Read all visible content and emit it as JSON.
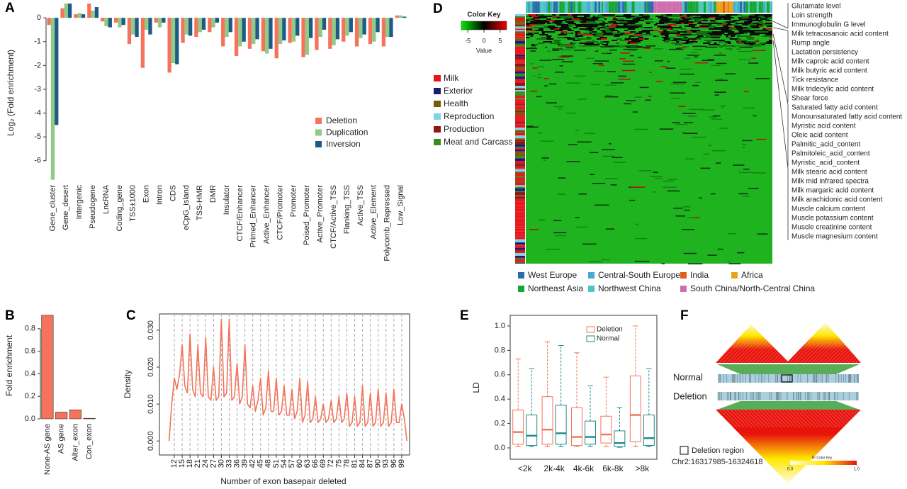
{
  "chart_data": [
    {
      "label": "A",
      "type": "bar",
      "ylabel": "Log₂ (Fold enrichment)",
      "categories": [
        "Gene_cluster",
        "Gene_desert",
        "Intergenic",
        "Pseudogene",
        "LncRNA",
        "Coding_gene",
        "TSS±1000",
        "Exon",
        "Intron",
        "CDS",
        "eCpG_island",
        "TSS-HMR",
        "DMR",
        "Insulator",
        "CTCF/Enhancer",
        "Primed_Enhancer",
        "Active_Enhancer",
        "CTCF/Promoter",
        "Promoter",
        "Poised_Promoter",
        "Active_Promoter",
        "CTCF/Active_TSS",
        "Flanking_TSS",
        "Active_TSS",
        "Active_Element",
        "Polycomb_Repressed",
        "Low_Signal"
      ],
      "series": [
        {
          "name": "Deletion",
          "color": "#f4735a",
          "values": [
            -0.3,
            0.4,
            0.15,
            0.6,
            -0.15,
            -0.2,
            -1.1,
            -2.1,
            -0.2,
            -2.3,
            -1.05,
            -0.8,
            -0.6,
            -1.2,
            -1.6,
            -1.3,
            -1.4,
            -1.7,
            -1.05,
            -1.65,
            -1.35,
            -1.3,
            -1.0,
            -1.2,
            -1.1,
            -1.2,
            0.1
          ]
        },
        {
          "name": "Duplication",
          "color": "#8fca86",
          "values": [
            -6.8,
            0.6,
            0.2,
            0.3,
            -0.35,
            -0.4,
            -0.7,
            -0.5,
            -0.4,
            -1.9,
            -0.7,
            -0.6,
            -0.4,
            -0.8,
            -1.2,
            -1.1,
            -1.5,
            -1.1,
            -1.0,
            -1.55,
            -0.8,
            -1.15,
            -0.75,
            -0.85,
            -1.0,
            -0.8,
            0.1
          ]
        },
        {
          "name": "Inversion",
          "color": "#1d5b86",
          "values": [
            -4.5,
            0.6,
            0.15,
            0.45,
            -0.4,
            -0.3,
            -0.8,
            -0.7,
            -0.2,
            -1.95,
            -0.75,
            -0.5,
            -0.2,
            -0.6,
            -1.0,
            -0.9,
            -1.3,
            -0.95,
            -0.75,
            -0.85,
            -0.5,
            -0.9,
            -0.6,
            -0.7,
            -0.6,
            -0.8,
            0.05
          ]
        }
      ],
      "ylim": [
        -6.9,
        0.6
      ],
      "yticks": [
        0,
        -1,
        -2,
        -3,
        -4,
        -5,
        -6
      ],
      "legend": "right"
    },
    {
      "label": "B",
      "type": "bar",
      "ylabel": "Fold enrichment",
      "categories": [
        "None-AS gene",
        "AS gene",
        "Alter_exon",
        "Con_exon"
      ],
      "values": [
        0.92,
        0.06,
        0.08,
        0.005
      ],
      "color": "#f4735a",
      "ylim": [
        0,
        0.95
      ],
      "yticks": [
        {
          "value": 0,
          "label": "0.0"
        },
        0.2,
        0.4,
        0.6,
        0.8
      ]
    },
    {
      "label": "C",
      "type": "line",
      "xlabel": "Number of exon basepair deleted",
      "ylabel": "Density",
      "color": "#f4735a",
      "grid": true,
      "x": [
        10,
        11,
        12,
        13,
        14,
        15,
        16,
        17,
        18,
        19,
        20,
        21,
        22,
        23,
        24,
        25,
        26,
        27,
        28,
        29,
        30,
        31,
        32,
        33,
        34,
        35,
        36,
        37,
        38,
        39,
        40,
        41,
        42,
        43,
        44,
        45,
        46,
        47,
        48,
        49,
        50,
        51,
        52,
        53,
        54,
        55,
        56,
        57,
        58,
        59,
        60,
        61,
        62,
        63,
        64,
        65,
        66,
        67,
        68,
        69,
        70,
        71,
        72,
        73,
        74,
        75,
        76,
        77,
        78,
        79,
        80,
        81,
        82,
        83,
        84,
        85,
        86,
        87,
        88,
        89,
        90,
        91,
        92,
        93,
        94,
        95,
        96,
        97,
        98,
        99,
        100,
        101
      ],
      "values": [
        0.0,
        0.01,
        0.017,
        0.014,
        0.018,
        0.026,
        0.015,
        0.013,
        0.029,
        0.014,
        0.012,
        0.026,
        0.013,
        0.012,
        0.028,
        0.012,
        0.011,
        0.02,
        0.011,
        0.012,
        0.033,
        0.012,
        0.013,
        0.033,
        0.011,
        0.012,
        0.021,
        0.01,
        0.012,
        0.026,
        0.01,
        0.009,
        0.015,
        0.008,
        0.011,
        0.017,
        0.007,
        0.009,
        0.019,
        0.008,
        0.008,
        0.017,
        0.007,
        0.008,
        0.015,
        0.007,
        0.007,
        0.014,
        0.006,
        0.008,
        0.017,
        0.005,
        0.007,
        0.016,
        0.005,
        0.006,
        0.012,
        0.005,
        0.006,
        0.01,
        0.005,
        0.006,
        0.011,
        0.005,
        0.006,
        0.012,
        0.005,
        0.006,
        0.013,
        0.004,
        0.005,
        0.012,
        0.004,
        0.005,
        0.015,
        0.004,
        0.005,
        0.013,
        0.004,
        0.005,
        0.014,
        0.004,
        0.005,
        0.013,
        0.004,
        0.005,
        0.014,
        0.005,
        0.005,
        0.01,
        0.006,
        0.0
      ],
      "xlim": [
        6.3,
        102
      ],
      "ylim": [
        -0.0038,
        0.0344
      ],
      "xticks": [
        12,
        15,
        18,
        21,
        24,
        27,
        30,
        33,
        36,
        39,
        42,
        45,
        48,
        51,
        54,
        57,
        60,
        63,
        66,
        69,
        72,
        75,
        78,
        81,
        84,
        87,
        90,
        93,
        96,
        99
      ],
      "yticks": [
        {
          "value": 0,
          "label": "0.000"
        },
        {
          "value": 0.01,
          "label": "0.010"
        },
        {
          "value": 0.02,
          "label": "0.020"
        },
        {
          "value": 0.03,
          "label": "0.030"
        }
      ]
    },
    {
      "label": "E",
      "type": "box",
      "ylabel": "LD",
      "categories": [
        "<2k",
        "2k-4k",
        "4k-6k",
        "6k-8k",
        ">8k"
      ],
      "series": [
        {
          "name": "Deletion",
          "color": "#f4735a",
          "min": [
            0.01,
            0.01,
            0.01,
            0.01,
            0.01
          ],
          "q1": [
            0.03,
            0.03,
            0.02,
            0.04,
            0.05
          ],
          "median": [
            0.13,
            0.15,
            0.09,
            0.11,
            0.27
          ],
          "q3": [
            0.31,
            0.42,
            0.33,
            0.26,
            0.59
          ],
          "max": [
            0.73,
            0.87,
            0.78,
            0.58,
            1.0
          ]
        },
        {
          "name": "Normal",
          "color": "#1d8a8a",
          "min": [
            0.01,
            0.01,
            0.01,
            0.005,
            0.01
          ],
          "q1": [
            0.02,
            0.03,
            0.03,
            0.01,
            0.02
          ],
          "median": [
            0.1,
            0.12,
            0.09,
            0.04,
            0.08
          ],
          "q3": [
            0.27,
            0.35,
            0.22,
            0.14,
            0.27
          ],
          "max": [
            0.65,
            0.84,
            0.51,
            0.33,
            0.65
          ]
        }
      ],
      "ylim": [
        -0.093,
        1.087
      ],
      "yticks": [
        {
          "value": 0,
          "label": "0.0"
        },
        0.2,
        0.4,
        0.6,
        0.8,
        {
          "value": 1,
          "label": "1.0"
        }
      ],
      "legend": "upper right"
    },
    {
      "label": "D",
      "type": "heatmap",
      "color_key": {
        "title": "Color Key",
        "xlabel": "Value",
        "zlim": [
          -7,
          7
        ],
        "ticks": [
          -5,
          0,
          5
        ],
        "colors": [
          "#00ee00",
          "#000000",
          "#ee0000"
        ]
      },
      "row_groups": [
        {
          "name": "Milk",
          "color": "#e8161c"
        },
        {
          "name": "Exterior",
          "color": "#1c1c78"
        },
        {
          "name": "Health",
          "color": "#7a5a0c"
        },
        {
          "name": "Reproduction",
          "color": "#7cd4ec"
        },
        {
          "name": "Production",
          "color": "#8c1818"
        },
        {
          "name": "Meat and Carcass",
          "color": "#3a8c18"
        }
      ],
      "column_groups": [
        {
          "name": "West Europe",
          "color": "#2a6ea8"
        },
        {
          "name": "Central-South Europe",
          "color": "#48a8d8"
        },
        {
          "name": "India",
          "color": "#e0601a"
        },
        {
          "name": "Africa",
          "color": "#e8a41e"
        },
        {
          "name": "Northeast Asia",
          "color": "#14a832"
        },
        {
          "name": "Northwest China",
          "color": "#4ec6c0"
        },
        {
          "name": "South China/North-Central China",
          "color": "#d06cb0"
        }
      ],
      "row_labels": [
        [
          "Glutamate level",
          "Loin strength",
          "Immunoglobulin G level"
        ],
        [
          "Milk tetracosanoic acid content",
          "Rump angle",
          "Lactation persistency",
          "Milk caproic acid content",
          "Milk butyric acid content",
          "Tick resistance",
          "Milk tridecylic acid content",
          "Shear force"
        ],
        [
          "Saturated fatty acid content",
          "Monounsaturated fatty acid content",
          "Myristic acid content",
          "Oleic acid content",
          "Palmitic_acid_content",
          "Palmitoleic_acid_content",
          "Myristic_acid_content"
        ],
        [
          "Milk stearic acid content",
          "Milk mid infrared spectra",
          "Milk margaric acid content",
          "Milk arachidonic acid content",
          "Muscle calcium content",
          "Muscle potassium content",
          "Muscle creatinine content",
          "Muscle magnesium content"
        ]
      ]
    },
    {
      "label": "F",
      "type": "ldheatmap",
      "tracks": [
        "Normal",
        "Deletion"
      ],
      "legend_box": "Deletion region",
      "region": "Chr2:16317985-16324618",
      "color_key": {
        "title": "R² Color Key",
        "zlim": [
          0,
          1
        ],
        "ticks": [
          {
            "value": 0,
            "label": "0.0"
          },
          {
            "value": 1,
            "label": "1.0"
          }
        ],
        "colors": [
          "#fffbe0",
          "#ffe600",
          "#e8140c"
        ]
      }
    }
  ]
}
